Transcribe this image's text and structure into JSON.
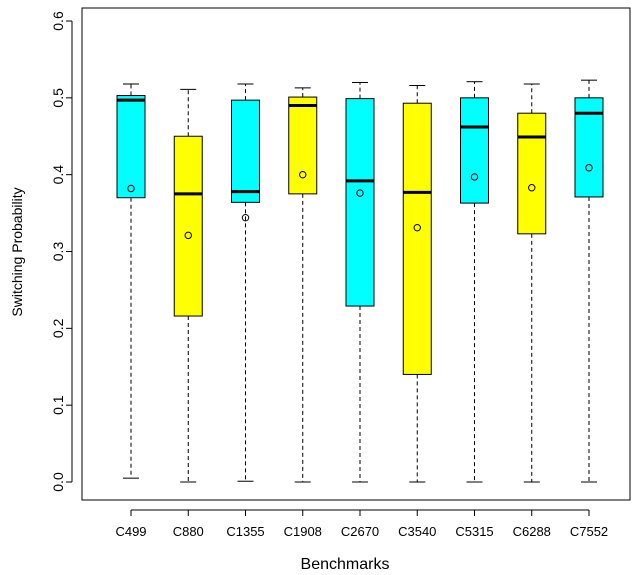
{
  "chart_data": {
    "type": "boxplot",
    "title": "",
    "xlabel": "Benchmarks",
    "ylabel": "Switching Probability",
    "ylim": [
      0,
      0.6
    ],
    "yticks": [
      "0.0",
      "0.1",
      "0.2",
      "0.3",
      "0.4",
      "0.5",
      "0.6"
    ],
    "grid": false,
    "colors": {
      "cyan": "#00ffff",
      "yellow": "#ffff00",
      "median": "#000000",
      "whisker": "#000000"
    },
    "categories": [
      "C499",
      "C880",
      "C1355",
      "C1908",
      "C2670",
      "C3540",
      "C5315",
      "C6288",
      "C7552"
    ],
    "boxes": [
      {
        "category": "C499",
        "min": 0.005,
        "q1": 0.37,
        "median": 0.497,
        "q3": 0.503,
        "max": 0.518,
        "mean": 0.382,
        "color": "#00ffff"
      },
      {
        "category": "C880",
        "min": 0.0,
        "q1": 0.216,
        "median": 0.375,
        "q3": 0.45,
        "max": 0.511,
        "mean": 0.321,
        "color": "#ffff00"
      },
      {
        "category": "C1355",
        "min": 0.001,
        "q1": 0.364,
        "median": 0.378,
        "q3": 0.497,
        "max": 0.518,
        "mean": 0.344,
        "color": "#00ffff"
      },
      {
        "category": "C1908",
        "min": 0.0,
        "q1": 0.375,
        "median": 0.49,
        "q3": 0.501,
        "max": 0.513,
        "mean": 0.4,
        "color": "#ffff00"
      },
      {
        "category": "C2670",
        "min": 0.0,
        "q1": 0.229,
        "median": 0.392,
        "q3": 0.499,
        "max": 0.52,
        "mean": 0.376,
        "color": "#00ffff"
      },
      {
        "category": "C3540",
        "min": 0.0,
        "q1": 0.14,
        "median": 0.377,
        "q3": 0.493,
        "max": 0.516,
        "mean": 0.331,
        "color": "#ffff00"
      },
      {
        "category": "C5315",
        "min": 0.0,
        "q1": 0.363,
        "median": 0.462,
        "q3": 0.5,
        "max": 0.521,
        "mean": 0.397,
        "color": "#00ffff"
      },
      {
        "category": "C6288",
        "min": 0.0,
        "q1": 0.323,
        "median": 0.449,
        "q3": 0.48,
        "max": 0.518,
        "mean": 0.383,
        "color": "#ffff00"
      },
      {
        "category": "C7552",
        "min": 0.0,
        "q1": 0.371,
        "median": 0.48,
        "q3": 0.5,
        "max": 0.523,
        "mean": 0.409,
        "color": "#00ffff"
      }
    ]
  }
}
